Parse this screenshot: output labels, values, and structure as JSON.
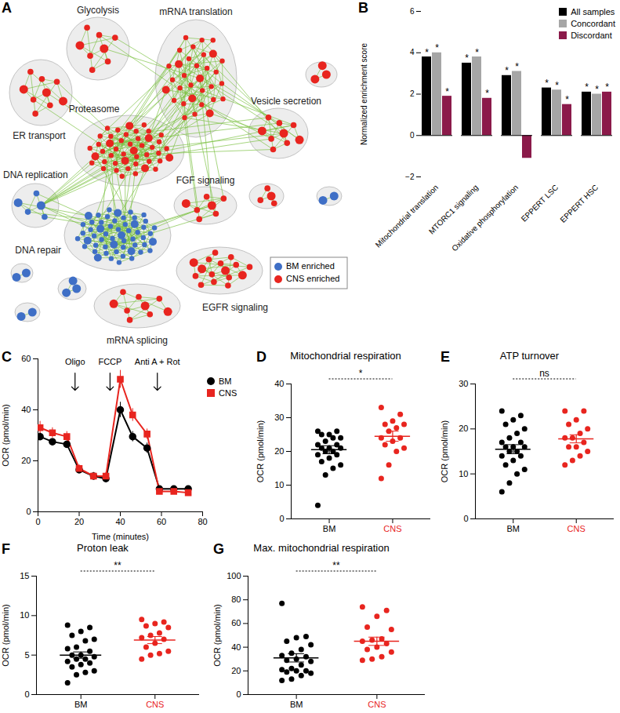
{
  "chart_data": [
    {
      "panel": "A",
      "type": "network",
      "groups": [
        {
          "label": "BM enriched",
          "color": "#3f6fc6"
        },
        {
          "label": "CNS enriched",
          "color": "#e8251f"
        }
      ],
      "clusters": [
        {
          "label": "Glycolysis",
          "group": "CNS enriched",
          "nodes": 8
        },
        {
          "label": "ER transport",
          "group": "CNS enriched",
          "nodes": 9
        },
        {
          "label": "mRNA translation",
          "group": "CNS enriched",
          "nodes": 32
        },
        {
          "label": "Proteasome",
          "group": "CNS enriched",
          "nodes": 45
        },
        {
          "label": "Vesicle secretion",
          "group": "CNS enriched",
          "nodes": 9
        },
        {
          "label": "DNA replication",
          "group": "BM enriched",
          "nodes": 5
        },
        {
          "label": "DNA repair",
          "group": "BM enriched",
          "nodes": 55
        },
        {
          "label": "FGF signaling",
          "group": "CNS enriched",
          "nodes": 7
        },
        {
          "label": "EGFR signaling",
          "group": "CNS enriched",
          "nodes": 16
        },
        {
          "label": "mRNA splicing",
          "group": "CNS enriched",
          "nodes": 9
        },
        {
          "label": null,
          "group": "BM enriched",
          "nodes": 2
        },
        {
          "label": null,
          "group": "BM enriched",
          "nodes": 3
        },
        {
          "label": null,
          "group": "BM enriched",
          "nodes": 2
        },
        {
          "label": null,
          "group": "CNS enriched",
          "nodes": 4
        },
        {
          "label": null,
          "group": "CNS enriched",
          "nodes": 3
        },
        {
          "label": null,
          "group": "BM enriched",
          "nodes": 2
        }
      ]
    },
    {
      "panel": "B",
      "type": "bar",
      "categories": [
        "Mitochondrial translation",
        "MTORC1 signaling",
        "Oxidative phosphorylation",
        "EPPERT LSC",
        "EPPERT HSC"
      ],
      "series": [
        {
          "name": "All samples",
          "color": "#000000",
          "values": [
            3.8,
            3.5,
            2.9,
            2.3,
            2.1
          ],
          "annotations": [
            "*",
            "*",
            "*",
            "*",
            "*"
          ]
        },
        {
          "name": "Concordant",
          "color": "#a6a6a6",
          "values": [
            4.0,
            3.8,
            3.1,
            2.2,
            2.0
          ],
          "annotations": [
            "*",
            "*",
            "*",
            "*",
            "*"
          ]
        },
        {
          "name": "Discordant",
          "color": "#8b1a4a",
          "values": [
            1.9,
            1.8,
            -1.1,
            1.5,
            2.1
          ],
          "annotations": [
            "*",
            "*",
            null,
            "*",
            "*"
          ]
        }
      ],
      "y_label": "Normalized enrichment score",
      "ylim": [
        -2,
        6
      ],
      "yticks": [
        -2,
        0,
        2,
        4,
        6
      ],
      "legend": "top-right"
    },
    {
      "panel": "C",
      "type": "line",
      "x": [
        1,
        7,
        14,
        20,
        27,
        33,
        40,
        46,
        53,
        59,
        66,
        73
      ],
      "series": [
        {
          "name": "BM",
          "color": "#000000",
          "marker": "circle",
          "values": [
            29.5,
            27.5,
            26.5,
            16.5,
            14,
            13,
            40,
            29.5,
            25,
            9,
            9,
            9
          ],
          "errors": [
            1.5,
            1.2,
            1.2,
            1,
            1,
            1,
            3,
            2,
            2,
            0.8,
            0.8,
            0.8
          ]
        },
        {
          "name": "CNS",
          "color": "#e8251f",
          "marker": "square",
          "values": [
            33,
            31,
            29.5,
            17,
            14,
            14,
            52,
            38,
            30.5,
            8,
            8,
            7.5
          ],
          "errors": [
            2.5,
            2,
            2,
            1.5,
            1.5,
            1.5,
            3.5,
            2.5,
            2,
            1,
            1,
            1
          ]
        }
      ],
      "x_label": "Time (minutes)",
      "y_label": "OCR (pmol/min)",
      "xlim": [
        0,
        80
      ],
      "xticks": [
        0,
        20,
        40,
        60,
        80
      ],
      "ylim": [
        0,
        60
      ],
      "yticks": [
        0,
        20,
        40,
        60
      ],
      "annotations": [
        {
          "text": "Oligo",
          "x": 18
        },
        {
          "text": "FCCP",
          "x": 35
        },
        {
          "text": "Anti A + Rot",
          "x": 58
        }
      ],
      "legend": "right"
    },
    {
      "panel": "D",
      "type": "scatter",
      "title": "Mitochondrial respiration",
      "series": [
        {
          "name": "BM",
          "color": "#000000",
          "values": [
            26,
            26,
            25,
            25,
            24,
            24,
            23,
            22,
            22,
            21,
            21,
            21,
            20,
            20,
            19,
            19,
            18,
            17,
            16,
            15,
            13,
            4
          ],
          "mean": 20.5,
          "sem": 1.2
        },
        {
          "name": "CNS",
          "color": "#e8251f",
          "values": [
            33,
            31,
            29,
            28,
            28,
            27,
            26,
            24,
            24,
            23,
            22,
            21,
            20,
            16,
            12
          ],
          "mean": 24.5,
          "sem": 1.5
        }
      ],
      "y_label": "OCR (pmol/min)",
      "ylim": [
        0,
        40
      ],
      "yticks": [
        0,
        10,
        20,
        30,
        40
      ],
      "annotation": "*"
    },
    {
      "panel": "E",
      "type": "scatter",
      "title": "ATP turnover",
      "series": [
        {
          "name": "BM",
          "color": "#000000",
          "values": [
            24,
            23,
            22,
            21,
            20,
            19,
            18,
            17,
            17,
            16,
            16,
            16,
            15,
            15,
            14,
            14,
            13,
            12,
            11,
            10,
            8,
            6
          ],
          "mean": 15.5,
          "sem": 1.0
        },
        {
          "name": "CNS",
          "color": "#e8251f",
          "values": [
            24,
            24,
            22,
            21,
            20,
            19,
            18,
            18,
            17,
            16,
            16,
            15,
            14,
            13,
            12
          ],
          "mean": 17.8,
          "sem": 0.9
        }
      ],
      "y_label": "OCR (pmol/min)",
      "ylim": [
        0,
        30
      ],
      "yticks": [
        0,
        10,
        20,
        30
      ],
      "annotation": "ns"
    },
    {
      "panel": "F",
      "type": "scatter",
      "title": "Proton leak",
      "series": [
        {
          "name": "BM",
          "color": "#000000",
          "values": [
            8.8,
            8.5,
            8,
            7.5,
            7,
            6.8,
            6,
            5.8,
            5.5,
            5,
            5,
            4.8,
            4.5,
            4.5,
            4.2,
            4,
            3.8,
            3.5,
            3,
            2.8,
            2.5,
            1.5
          ],
          "mean": 5.0,
          "sem": 0.4
        },
        {
          "name": "CNS",
          "color": "#e8251f",
          "values": [
            9.5,
            9.2,
            9,
            8.7,
            8.5,
            7.8,
            7.5,
            7.2,
            7,
            6.5,
            6,
            5.5,
            5.2,
            5,
            4.5
          ],
          "mean": 6.9,
          "sem": 0.45
        }
      ],
      "y_label": "OCR (pmol/min)",
      "ylim": [
        0,
        15
      ],
      "yticks": [
        0,
        5,
        10,
        15
      ],
      "annotation": "**"
    },
    {
      "panel": "G",
      "type": "scatter",
      "title": "Max. mitochondrial respiration",
      "series": [
        {
          "name": "BM",
          "color": "#000000",
          "values": [
            77,
            49,
            48,
            45,
            42,
            38,
            35,
            33,
            32,
            30,
            29,
            28,
            25,
            22,
            21,
            20,
            20,
            19,
            18,
            16,
            13,
            12
          ],
          "mean": 31,
          "sem": 3.5
        },
        {
          "name": "CNS",
          "color": "#e8251f",
          "values": [
            74,
            71,
            66,
            57,
            55,
            47,
            46,
            45,
            43,
            40,
            38,
            36,
            32,
            30,
            29
          ],
          "mean": 45,
          "sem": 3.5
        }
      ],
      "y_label": "OCR (pmol/min)",
      "ylim": [
        0,
        100
      ],
      "yticks": [
        0,
        20,
        40,
        60,
        80,
        100
      ],
      "annotation": "**"
    }
  ]
}
